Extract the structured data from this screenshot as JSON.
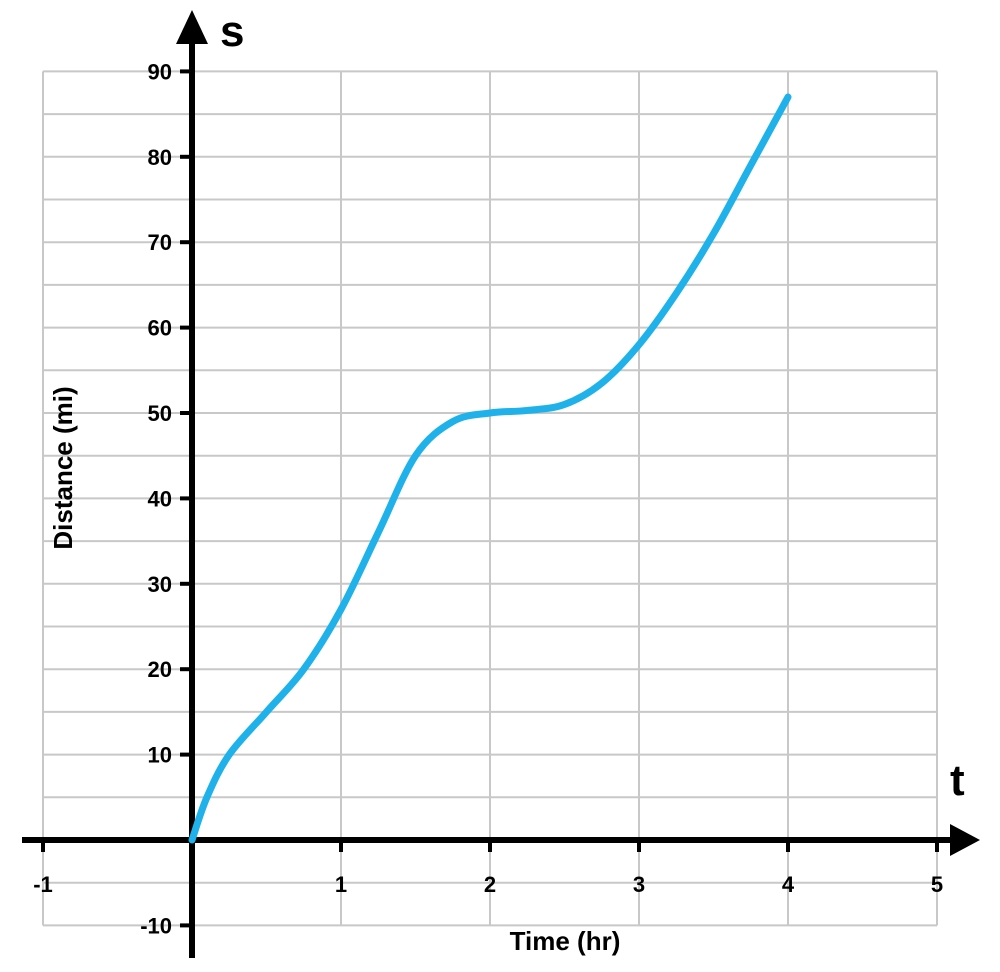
{
  "chart_data": {
    "type": "line",
    "title": "",
    "xlabel": "Time (hr)",
    "ylabel": "Distance (mi)",
    "x_axis_var": "t",
    "y_axis_var": "s",
    "xlim": [
      -1,
      5
    ],
    "ylim": [
      -10,
      90
    ],
    "x_ticks": [
      "-1",
      "1",
      "2",
      "3",
      "4",
      "5"
    ],
    "y_ticks": [
      "90",
      "80",
      "70",
      "60",
      "50",
      "40",
      "30",
      "20",
      "10",
      "-10"
    ],
    "grid": true,
    "line_color": "#1fb1ea",
    "series": [
      {
        "x": [
          0,
          0.1,
          0.25,
          0.5,
          0.75,
          1.0,
          1.25,
          1.5,
          1.75,
          2.0,
          2.25,
          2.5,
          2.75,
          3.0,
          3.25,
          3.5,
          3.75,
          4.0
        ],
        "y": [
          0,
          5,
          10,
          15,
          20,
          27,
          36,
          45,
          49,
          50,
          50.3,
          51,
          53.5,
          58,
          64,
          71,
          79,
          87
        ]
      }
    ]
  }
}
